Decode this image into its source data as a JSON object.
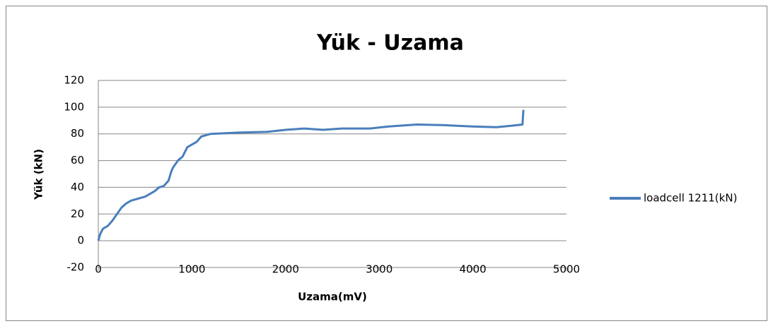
{
  "chart_data": {
    "type": "line",
    "title": "Yük - Uzama",
    "xlabel": "Uzama(mV)",
    "ylabel": "Yük (kN)",
    "x": [
      0,
      20,
      50,
      100,
      150,
      200,
      250,
      300,
      350,
      400,
      500,
      600,
      650,
      700,
      750,
      780,
      800,
      850,
      900,
      950,
      1000,
      1050,
      1100,
      1150,
      1200,
      1500,
      1800,
      2000,
      2200,
      2400,
      2600,
      2900,
      3100,
      3400,
      3700,
      4000,
      4250,
      4400,
      4530,
      4540
    ],
    "series": [
      {
        "name": "loadcell 1211(kN)",
        "color": "#4a7ebb",
        "values": [
          0,
          5,
          9,
          11,
          15,
          20,
          25,
          28,
          30,
          31,
          33,
          37,
          40,
          41,
          45,
          52,
          55,
          60,
          63,
          70,
          72,
          74,
          78,
          79,
          80,
          81,
          81.5,
          83,
          84,
          83,
          84,
          84,
          85.5,
          87,
          86.5,
          85.5,
          85,
          86,
          87,
          98
        ]
      }
    ],
    "xlim": [
      0,
      5000
    ],
    "xticks": [
      0,
      1000,
      2000,
      3000,
      4000,
      5000
    ],
    "ylim": [
      -20,
      120
    ],
    "yticks": [
      -20,
      0,
      20,
      40,
      60,
      80,
      100,
      120
    ],
    "grid": true,
    "legend": "right"
  }
}
